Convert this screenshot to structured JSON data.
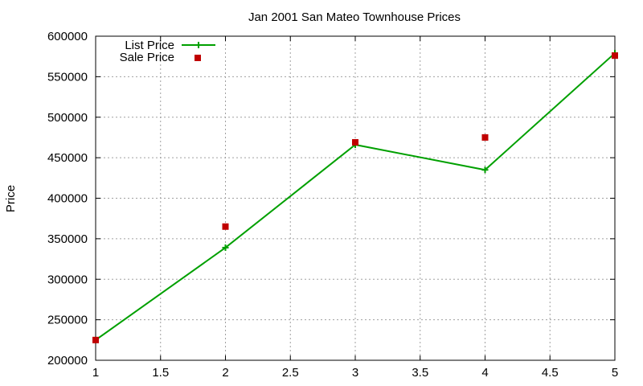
{
  "chart_data": {
    "type": "line",
    "title": "Jan 2001 San Mateo Townhouse Prices",
    "xlabel": "",
    "ylabel": "Price",
    "xlim": [
      1,
      5
    ],
    "ylim": [
      200000,
      600000
    ],
    "xticks": [
      "1",
      "1.5",
      "2",
      "2.5",
      "3",
      "3.5",
      "4",
      "4.5",
      "5"
    ],
    "yticks": [
      "200000",
      "250000",
      "300000",
      "350000",
      "400000",
      "450000",
      "500000",
      "550000",
      "600000"
    ],
    "grid": true,
    "legend_position": "top-left",
    "x": [
      1,
      2,
      3,
      4,
      5
    ],
    "series": [
      {
        "name": "List Price",
        "style": "line+plus",
        "color": "#00a000",
        "values": [
          225000,
          339000,
          466000,
          435000,
          579000
        ]
      },
      {
        "name": "Sale Price",
        "style": "squares",
        "color": "#c00000",
        "values": [
          225000,
          365000,
          469000,
          475000,
          576000
        ]
      }
    ]
  }
}
